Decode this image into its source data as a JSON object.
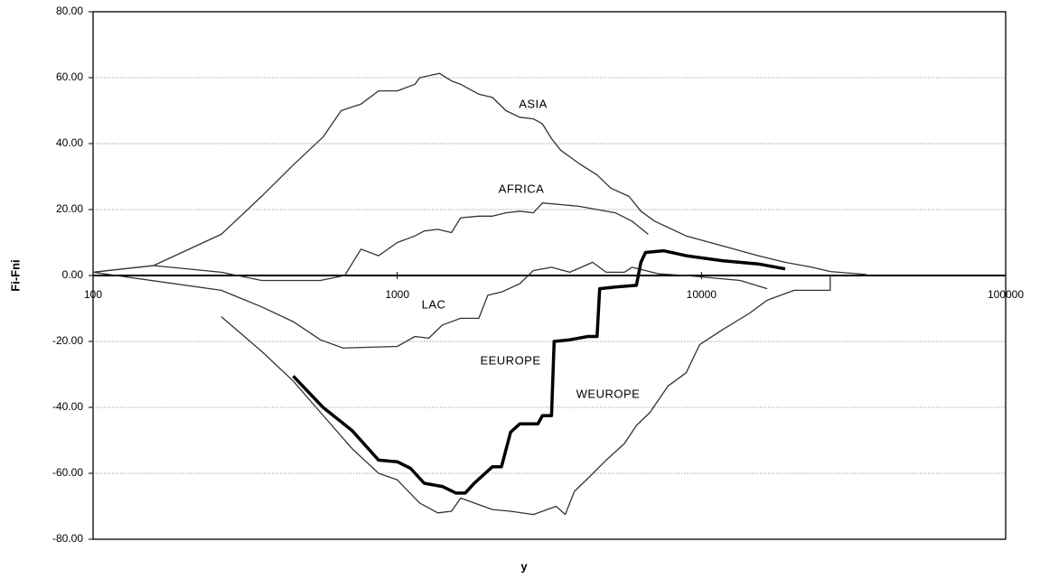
{
  "chart_data": {
    "type": "line",
    "xscale": "log",
    "x_label": "y",
    "y_label": "Fi-Fni",
    "xlim": [
      100,
      100000
    ],
    "xticks": [
      100,
      1000,
      10000,
      100000
    ],
    "ylim": [
      -80,
      80
    ],
    "yticks": [
      {
        "value": -80,
        "label": "-80.00"
      },
      {
        "value": -60,
        "label": "-60.00"
      },
      {
        "value": -40,
        "label": "-40.00"
      },
      {
        "value": -20,
        "label": "-20.00"
      },
      {
        "value": 0,
        "label": "0.00"
      },
      {
        "value": 20,
        "label": "20.00"
      },
      {
        "value": 40,
        "label": "40.00"
      },
      {
        "value": 60,
        "label": "60.00"
      },
      {
        "value": 80,
        "label": "80.00"
      }
    ],
    "grid": true,
    "series": [
      {
        "name": "ASIA",
        "color": "#333333",
        "line_width": 1.3,
        "x": [
          100,
          158,
          264,
          358,
          455,
          570,
          654,
          760,
          868,
          1000,
          1144,
          1185,
          1377,
          1508,
          1616,
          1854,
          2055,
          2278,
          2526,
          2801,
          3001,
          3215,
          3444,
          3955,
          4537,
          5035,
          5776,
          6324,
          7010,
          8905,
          11700,
          15370,
          18850,
          23110,
          26500,
          34900
        ],
        "values": [
          1,
          3,
          12.5,
          24,
          33.5,
          42,
          50,
          52,
          56,
          56,
          58,
          60,
          61.3,
          59,
          58,
          55,
          54,
          50,
          48,
          47.5,
          46,
          41.5,
          38,
          34,
          30.5,
          26.5,
          24,
          19.5,
          16.5,
          12,
          9,
          6,
          4,
          2.5,
          1.2,
          0.3
        ]
      },
      {
        "name": "AFRICA",
        "color": "#333333",
        "line_width": 1.3,
        "x": [
          100,
          158,
          264,
          358,
          559,
          672,
          760,
          868,
          1000,
          1144,
          1226,
          1359,
          1508,
          1616,
          1854,
          2055,
          2278,
          2526,
          2801,
          3001,
          3444,
          3955,
          4537,
          5210,
          5910,
          6683
        ],
        "values": [
          1,
          3,
          1,
          -1.5,
          -1.5,
          0,
          8,
          6,
          10,
          12,
          13.5,
          14,
          13,
          17.5,
          18,
          18,
          19,
          19.5,
          19,
          22,
          21.5,
          21,
          20,
          19,
          16.5,
          12.5
        ]
      },
      {
        "name": "LAC",
        "color": "#333333",
        "line_width": 1.3,
        "x": [
          100,
          264,
          358,
          455,
          559,
          663,
          1000,
          1144,
          1270,
          1407,
          1616,
          1854,
          1985,
          2201,
          2526,
          2801,
          3215,
          3690,
          4384,
          4862,
          5580,
          5910,
          7256,
          8905,
          13420,
          16440
        ],
        "values": [
          1,
          -4.5,
          -9.5,
          -14,
          -19.5,
          -22,
          -21.5,
          -18.5,
          -19,
          -15,
          -13,
          -13,
          -6,
          -5,
          -2.5,
          1.5,
          2.5,
          1,
          4,
          1,
          1,
          2.5,
          0.5,
          0,
          -1.5,
          -4
        ]
      },
      {
        "name": "EEUROPE",
        "color": "#000000",
        "line_width": 3.5,
        "x": [
          455,
          570,
          710,
          868,
          1000,
          1106,
          1226,
          1407,
          1561,
          1672,
          1791,
          2055,
          2201,
          2358,
          2526,
          2899,
          3001,
          3215,
          3280,
          3690,
          4236,
          4537,
          4630,
          5210,
          6112,
          6324,
          6546,
          7504,
          8905,
          11700,
          15370,
          18850
        ],
        "values": [
          -30.5,
          -40,
          -47,
          -56,
          -56.5,
          -58.5,
          -63,
          -64,
          -66,
          -66,
          -63,
          -58,
          -58,
          -47.5,
          -45,
          -45,
          -42.5,
          -42.5,
          -20,
          -19.5,
          -18.5,
          -18.5,
          -4,
          -3.5,
          -3,
          4,
          7,
          7.5,
          6,
          4.5,
          3.5,
          2
        ]
      },
      {
        "name": "WEUROPE",
        "color": "#333333",
        "line_width": 1.3,
        "x": [
          264,
          358,
          455,
          559,
          710,
          868,
          1000,
          1185,
          1359,
          1508,
          1616,
          1791,
          2055,
          2358,
          2801,
          3328,
          3566,
          3820,
          4236,
          4862,
          5580,
          6112,
          6775,
          7766,
          8905,
          9863,
          11700,
          14360,
          16440,
          20170,
          26500,
          26500
        ],
        "values": [
          -12.5,
          -23,
          -32,
          -41.5,
          -52.5,
          -60,
          -62,
          -69,
          -72,
          -71.5,
          -67.5,
          -69,
          -71,
          -71.5,
          -72.5,
          -70,
          -72.5,
          -65.5,
          -61.5,
          -56,
          -51,
          -45.5,
          -41.5,
          -33.5,
          -29.5,
          -21,
          -16.5,
          -11.5,
          -7.5,
          -4.5,
          -4.5,
          0
        ]
      }
    ]
  }
}
